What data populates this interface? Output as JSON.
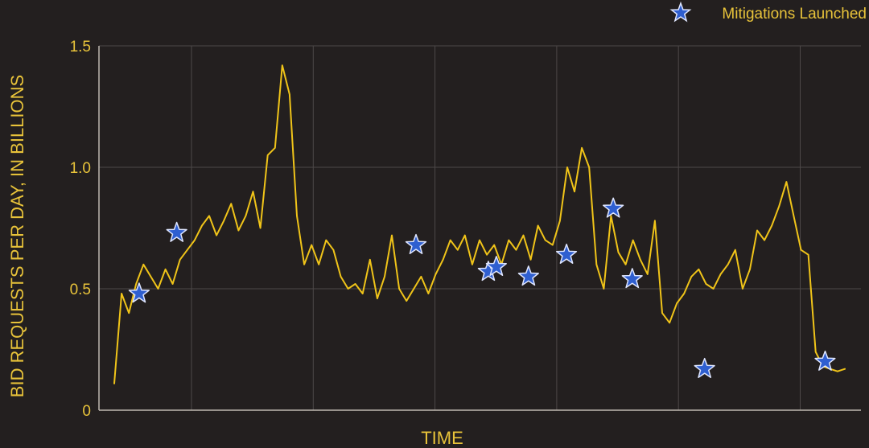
{
  "chart_data": {
    "type": "line",
    "title": "",
    "xlabel": "TIME",
    "ylabel": "BID REQUESTS PER DAY, IN BILLIONS",
    "ylim": [
      0,
      1.5
    ],
    "y_ticks": [
      {
        "value": 0,
        "label": "0"
      },
      {
        "value": 0.5,
        "label": "0.5"
      },
      {
        "value": 1.0,
        "label": "1.0"
      },
      {
        "value": 1.5,
        "label": "1.5"
      }
    ],
    "x_gridlines": 6,
    "grid": true,
    "legend": {
      "label": "Mitigations Launched",
      "position": "top-right"
    },
    "colors": {
      "background": "#231f1f",
      "line": "#f0c419",
      "text": "#e8c33a",
      "grid": "#4d4848",
      "axis": "#bfb8b0",
      "marker_fill": "#2f5fd0",
      "marker_stroke": "#dfe6ff"
    },
    "series": [
      {
        "type": "line",
        "x": [
          0,
          1,
          2,
          3,
          4,
          5,
          6,
          7,
          8,
          9,
          10,
          11,
          12,
          13,
          14,
          15,
          16,
          17,
          18,
          19,
          20,
          21,
          22,
          23,
          24,
          25,
          26,
          27,
          28,
          29,
          30,
          31,
          32,
          33,
          34,
          35,
          36,
          37,
          38,
          39,
          40,
          41,
          42,
          43,
          44,
          45,
          46,
          47,
          48,
          49,
          50,
          51,
          52,
          53,
          54,
          55,
          56,
          57,
          58,
          59,
          60,
          61,
          62,
          63,
          64,
          65,
          66,
          67,
          68,
          69,
          70,
          71,
          72,
          73,
          74,
          75,
          76,
          77,
          78,
          79,
          80,
          81,
          82,
          83,
          84,
          85,
          86,
          87,
          88,
          89,
          90,
          91,
          92,
          93,
          94,
          95,
          96,
          97,
          98,
          99,
          100
        ],
        "y": [
          0.11,
          0.48,
          0.4,
          0.52,
          0.6,
          0.55,
          0.5,
          0.58,
          0.52,
          0.62,
          0.66,
          0.7,
          0.76,
          0.8,
          0.72,
          0.78,
          0.85,
          0.74,
          0.8,
          0.9,
          0.75,
          1.05,
          1.08,
          1.42,
          1.3,
          0.8,
          0.6,
          0.68,
          0.6,
          0.7,
          0.66,
          0.55,
          0.5,
          0.52,
          0.48,
          0.62,
          0.46,
          0.55,
          0.72,
          0.5,
          0.45,
          0.5,
          0.55,
          0.48,
          0.56,
          0.62,
          0.7,
          0.66,
          0.72,
          0.6,
          0.7,
          0.64,
          0.68,
          0.6,
          0.7,
          0.66,
          0.72,
          0.62,
          0.76,
          0.7,
          0.68,
          0.78,
          1.0,
          0.9,
          1.08,
          1.0,
          0.6,
          0.5,
          0.8,
          0.65,
          0.6,
          0.7,
          0.62,
          0.56,
          0.78,
          0.4,
          0.36,
          0.44,
          0.48,
          0.55,
          0.58,
          0.52,
          0.5,
          0.56,
          0.6,
          0.66,
          0.5,
          0.58,
          0.74,
          0.7,
          0.76,
          0.84,
          0.94,
          0.8,
          0.66,
          0.64,
          0.24,
          0.18,
          0.17,
          0.16,
          0.17
        ]
      },
      {
        "type": "marker",
        "name": "Mitigations Launched",
        "points": [
          {
            "x": 3.4,
            "y": 0.48
          },
          {
            "x": 8.55,
            "y": 0.73
          },
          {
            "x": 41.3,
            "y": 0.68
          },
          {
            "x": 51.2,
            "y": 0.57
          },
          {
            "x": 52.3,
            "y": 0.59
          },
          {
            "x": 56.7,
            "y": 0.55
          },
          {
            "x": 61.9,
            "y": 0.64
          },
          {
            "x": 68.3,
            "y": 0.83
          },
          {
            "x": 70.9,
            "y": 0.54
          },
          {
            "x": 80.8,
            "y": 0.17
          },
          {
            "x": 97.3,
            "y": 0.2
          }
        ]
      }
    ]
  }
}
